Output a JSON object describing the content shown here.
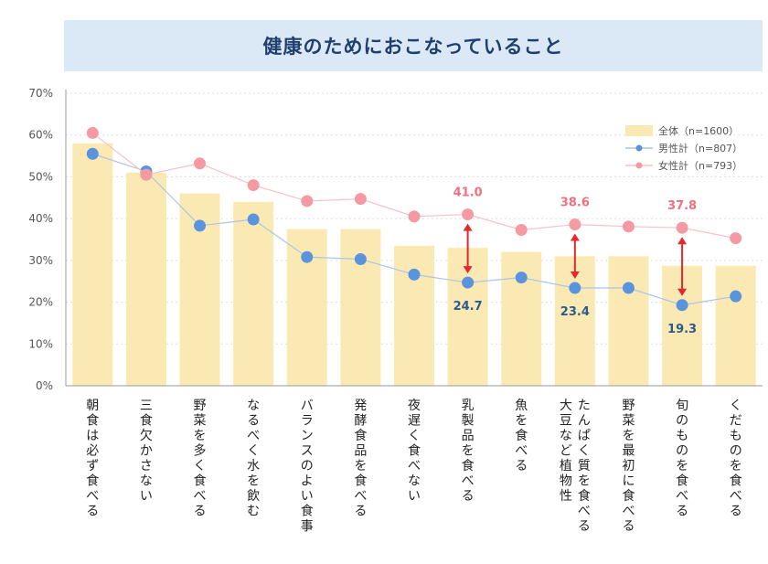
{
  "chart_data": {
    "type": "bar",
    "title": "健康のためにおこなっていること",
    "categories": [
      "朝食は必ず食べる",
      "三食欠かさない",
      "野菜を多く食べる",
      "なるべく水を飲む",
      "バランスのよい食事",
      "発酵食品を食べる",
      "夜遅く食べない",
      "乳製品を食べる",
      "魚を食べる",
      "大豆など植物性\nたんぱく質を食べる",
      "野菜を最初に食べる",
      "旬のものを食べる",
      "くだものを食べる"
    ],
    "ylim": [
      0,
      70
    ],
    "yticks": [
      "0%",
      "10%",
      "20%",
      "30%",
      "40%",
      "50%",
      "60%",
      "70%"
    ],
    "grid": true,
    "legend_position": "top-right",
    "series": [
      {
        "name": "全体（n=1600）",
        "kind": "bar",
        "color": "#fbe9b4",
        "values": [
          58.0,
          51.0,
          46.0,
          44.0,
          37.5,
          37.5,
          33.5,
          33.0,
          32.0,
          31.0,
          31.0,
          28.7,
          28.7
        ]
      },
      {
        "name": "男性計（n=807）",
        "kind": "line",
        "color": "#5b93dc",
        "values": [
          55.5,
          51.3,
          38.3,
          39.8,
          30.8,
          30.3,
          26.6,
          24.7,
          25.9,
          23.4,
          23.4,
          19.3,
          21.4
        ]
      },
      {
        "name": "女性計（n=793）",
        "kind": "line",
        "color": "#f59aa2",
        "values": [
          60.5,
          50.5,
          53.2,
          48.0,
          44.2,
          44.7,
          40.5,
          41.0,
          37.3,
          38.6,
          38.1,
          37.8,
          35.3
        ]
      }
    ],
    "annotations": [
      {
        "category_index": 7,
        "female": "41.0",
        "male": "24.7"
      },
      {
        "category_index": 9,
        "female": "38.6",
        "male": "23.4"
      },
      {
        "category_index": 11,
        "female": "37.8",
        "male": "19.3"
      }
    ]
  }
}
